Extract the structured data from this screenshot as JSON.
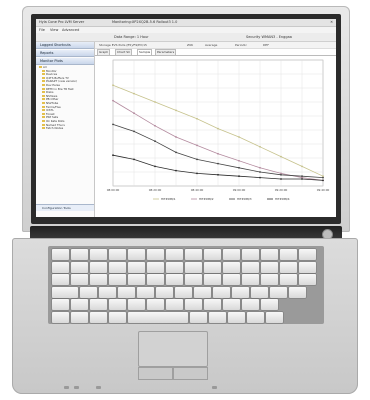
{
  "window": {
    "title": "Monitoring:XP2XQ2B-5.6 Rollout3 1.0",
    "app_name": "Hyla Cone Pro LVM Server",
    "status_right": "Security WMAN3 - Enggaa"
  },
  "menu": [
    "File",
    "View",
    "Advanced"
  ],
  "toolbar": {
    "items": [
      "Data Range: 1 Hour"
    ],
    "search_label": "Storage EVS Pulls (E5)/F9/EV/15"
  },
  "sidebar": {
    "panels": [
      "Logged Shortcuts",
      "Reports",
      "Monitor Plots"
    ],
    "tree": [
      "All",
      "Monitor",
      "Devices",
      "Q4TS Buffers TV",
      "PGRAZT (new version)",
      "Dev Parse",
      "RETD in Bre TR Test",
      "Disks",
      "NS3xwe",
      "PB Other",
      "NS2Tube",
      "Ferms/Hse",
      "ICSTL",
      "Forest",
      "PSP Sets",
      "Ok Kate Rolls",
      "Named Thurs",
      "Fetch Nodes"
    ],
    "bottom_label": "Configuration Tools"
  },
  "main": {
    "options": [
      "Z96",
      "Average",
      "Periodic",
      "DEF"
    ],
    "tabs": [
      "Graph",
      "Chart SC",
      "Sample",
      "Parameters"
    ],
    "active_tab_index": 2
  },
  "colors": {
    "bezel": "#2b2b2b",
    "deck": "#d2d2d2",
    "titlebar": "#e4e4e4",
    "panel": "#c9d6ea"
  },
  "chart_data": {
    "type": "line",
    "x": [
      "08:00:00",
      "08:10:00",
      "08:20:00",
      "08:30:00",
      "08:40:00",
      "08:50:00",
      "09:00:00",
      "09:10:00",
      "09:20:00",
      "09:30:00",
      "09:40:00"
    ],
    "series": [
      {
        "name": "HIT4588/1",
        "color": "#c6c28c",
        "values": [
          10.2,
          9.6,
          9.0,
          8.4,
          7.8,
          7.1,
          6.5,
          5.8,
          5.1,
          4.4,
          3.7
        ]
      },
      {
        "name": "HIT4588/2",
        "color": "#b38a9e",
        "values": [
          9.1,
          8.2,
          7.3,
          6.5,
          5.9,
          5.3,
          4.8,
          4.3,
          3.9,
          3.6,
          3.4
        ]
      },
      {
        "name": "HIT4588/3",
        "color": "#444444",
        "values": [
          7.4,
          6.9,
          6.2,
          5.4,
          4.9,
          4.6,
          4.3,
          4.0,
          3.8,
          3.7,
          3.6
        ]
      },
      {
        "name": "HIT4588/4",
        "color": "#2b2b2b",
        "values": [
          5.2,
          4.9,
          4.4,
          4.1,
          3.9,
          3.8,
          3.7,
          3.6,
          3.5,
          3.5,
          3.4
        ]
      }
    ],
    "ylim": [
      3,
      12
    ],
    "grid": true,
    "legend_position": "bottom"
  }
}
